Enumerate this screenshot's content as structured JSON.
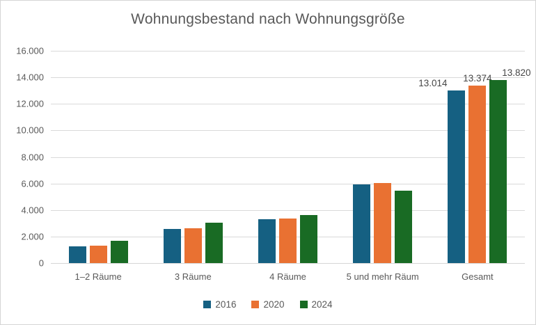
{
  "chart_data": {
    "type": "bar",
    "title": "Wohnungsbestand nach Wohnungsgröße",
    "categories": [
      "1–2 Räume",
      "3 Räume",
      "4 Räume",
      "5 und mehr Räum",
      "Gesamt"
    ],
    "series": [
      {
        "name": "2016",
        "color": "#156082",
        "values": [
          1250,
          2550,
          3300,
          5914,
          13014
        ],
        "bar_labels": [
          "",
          "",
          "",
          "",
          "13.014"
        ]
      },
      {
        "name": "2020",
        "color": "#E97132",
        "values": [
          1320,
          2620,
          3380,
          6054,
          13374
        ],
        "bar_labels": [
          "",
          "",
          "",
          "",
          "13.374"
        ]
      },
      {
        "name": "2024",
        "color": "#196B24",
        "values": [
          1660,
          3060,
          3620,
          5480,
          13820
        ],
        "bar_labels": [
          "",
          "",
          "",
          "",
          "13.820"
        ]
      }
    ],
    "ylim": [
      0,
      16000
    ],
    "ytick_step": 2000,
    "ytick_labels": [
      "0",
      "2.000",
      "4.000",
      "6.000",
      "8.000",
      "10.000",
      "12.000",
      "14.000",
      "16.000"
    ],
    "grid": "horizontal-only",
    "legend_position": "bottom",
    "legend_labels": [
      "2016",
      "2020",
      "2024"
    ],
    "colors": {
      "background": "#FFFFFF",
      "border": "#D5D5D5",
      "gridline": "#D9D9D9",
      "axis_text": "#595959",
      "title_text": "#595959",
      "data_label_text": "#464646"
    }
  }
}
